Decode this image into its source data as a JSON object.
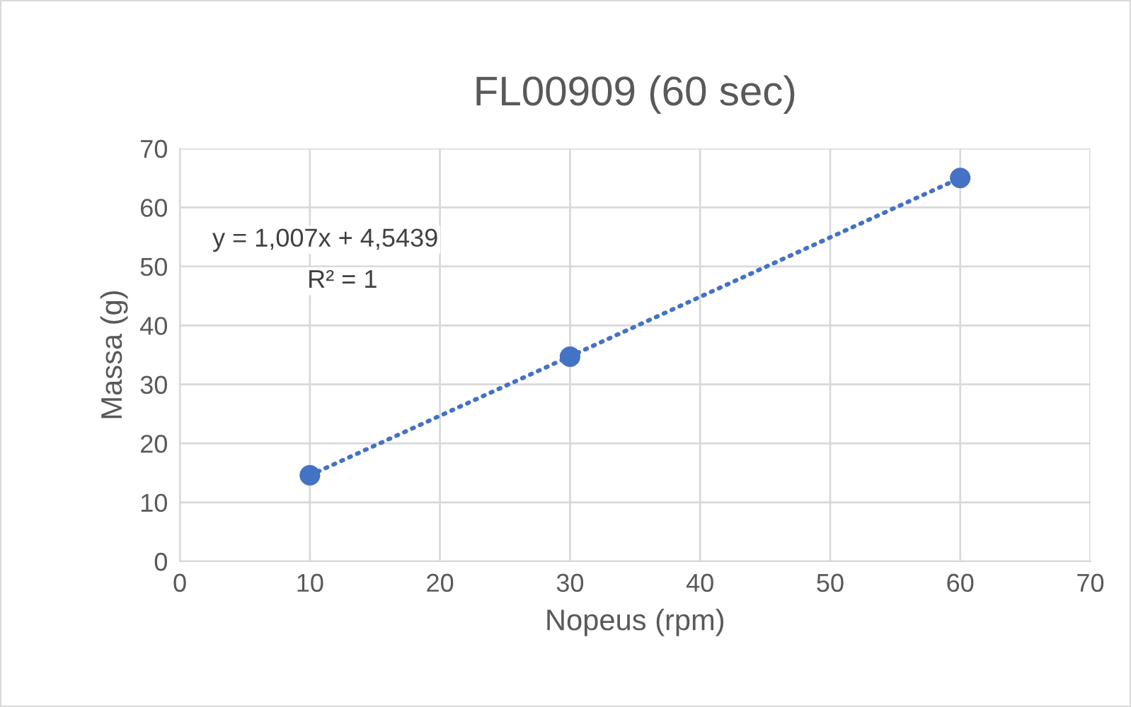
{
  "chart_data": {
    "type": "scatter",
    "title": "FL00909 (60 sec)",
    "xlabel": "Nopeus (rpm)",
    "ylabel": "Massa (g)",
    "xlim": [
      0,
      70
    ],
    "ylim": [
      0,
      70
    ],
    "xticks": [
      0,
      10,
      20,
      30,
      40,
      50,
      60,
      70
    ],
    "yticks": [
      0,
      10,
      20,
      30,
      40,
      50,
      60,
      70
    ],
    "grid": true,
    "legend": false,
    "series": [
      {
        "marker": "circle",
        "color": "#4472c4",
        "x": [
          10,
          30,
          60
        ],
        "values": [
          14.6,
          34.7,
          65.0
        ]
      },
      {
        "type": "line",
        "color": "#4472c4",
        "x": [
          10,
          60
        ],
        "values": [
          14.6,
          65.0
        ],
        "line_style": "dotted"
      }
    ],
    "annotations": [
      "y = 1,007x + 4,5439",
      "R² = 1"
    ]
  }
}
